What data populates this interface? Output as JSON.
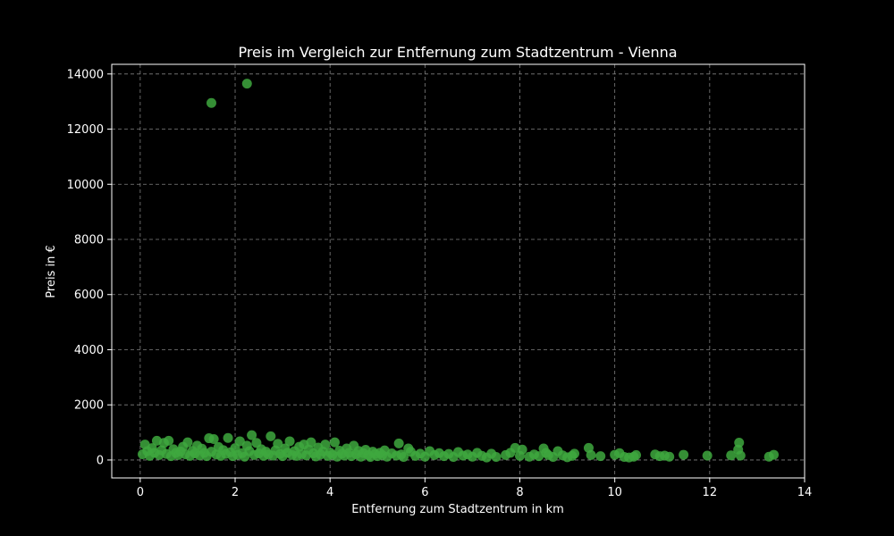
{
  "chart_data": {
    "type": "scatter",
    "title": "Preis im Vergleich zur Entfernung zum Stadtzentrum - Vienna",
    "xlabel": "Entfernung zum Stadtzentrum in km",
    "ylabel": "Preis in €",
    "xlim": [
      -0.6,
      14
    ],
    "ylim": [
      -650,
      14350
    ],
    "xticks": [
      0,
      2,
      4,
      6,
      8,
      10,
      12,
      14
    ],
    "yticks": [
      0,
      2000,
      4000,
      6000,
      8000,
      10000,
      12000,
      14000
    ],
    "grid": true,
    "colors": {
      "background": "#000000",
      "axes": "#ffffff",
      "grid": "#808080",
      "marker": "#3ea83e"
    },
    "points": [
      [
        1.5,
        12950
      ],
      [
        2.25,
        13650
      ],
      [
        0.05,
        210
      ],
      [
        0.1,
        560
      ],
      [
        0.15,
        320
      ],
      [
        0.2,
        150
      ],
      [
        0.25,
        430
      ],
      [
        0.3,
        260
      ],
      [
        0.35,
        700
      ],
      [
        0.4,
        180
      ],
      [
        0.45,
        350
      ],
      [
        0.5,
        620
      ],
      [
        0.55,
        220
      ],
      [
        0.6,
        700
      ],
      [
        0.65,
        140
      ],
      [
        0.7,
        390
      ],
      [
        0.75,
        260
      ],
      [
        0.8,
        180
      ],
      [
        0.85,
        310
      ],
      [
        0.9,
        480
      ],
      [
        0.95,
        210
      ],
      [
        1.0,
        640
      ],
      [
        1.05,
        150
      ],
      [
        1.1,
        330
      ],
      [
        1.15,
        240
      ],
      [
        1.2,
        520
      ],
      [
        1.25,
        170
      ],
      [
        1.3,
        410
      ],
      [
        1.35,
        260
      ],
      [
        1.4,
        140
      ],
      [
        1.45,
        790
      ],
      [
        1.5,
        300
      ],
      [
        1.55,
        760
      ],
      [
        1.6,
        200
      ],
      [
        1.65,
        470
      ],
      [
        1.7,
        150
      ],
      [
        1.75,
        360
      ],
      [
        1.8,
        220
      ],
      [
        1.85,
        800
      ],
      [
        1.9,
        280
      ],
      [
        1.95,
        140
      ],
      [
        2.0,
        430
      ],
      [
        2.05,
        190
      ],
      [
        2.1,
        680
      ],
      [
        2.15,
        250
      ],
      [
        2.2,
        120
      ],
      [
        2.25,
        520
      ],
      [
        2.3,
        320
      ],
      [
        2.35,
        900
      ],
      [
        2.4,
        180
      ],
      [
        2.45,
        620
      ],
      [
        2.5,
        240
      ],
      [
        2.55,
        390
      ],
      [
        2.6,
        150
      ],
      [
        2.65,
        300
      ],
      [
        2.7,
        200
      ],
      [
        2.75,
        860
      ],
      [
        2.8,
        160
      ],
      [
        2.85,
        350
      ],
      [
        2.9,
        590
      ],
      [
        2.95,
        220
      ],
      [
        3.0,
        140
      ],
      [
        3.05,
        420
      ],
      [
        3.1,
        260
      ],
      [
        3.15,
        680
      ],
      [
        3.2,
        180
      ],
      [
        3.25,
        320
      ],
      [
        3.3,
        150
      ],
      [
        3.35,
        480
      ],
      [
        3.4,
        210
      ],
      [
        3.45,
        560
      ],
      [
        3.5,
        170
      ],
      [
        3.55,
        380
      ],
      [
        3.6,
        640
      ],
      [
        3.65,
        240
      ],
      [
        3.7,
        130
      ],
      [
        3.75,
        450
      ],
      [
        3.8,
        200
      ],
      [
        3.85,
        310
      ],
      [
        3.9,
        560
      ],
      [
        3.95,
        150
      ],
      [
        4.0,
        270
      ],
      [
        4.05,
        190
      ],
      [
        4.1,
        640
      ],
      [
        4.15,
        120
      ],
      [
        4.2,
        340
      ],
      [
        4.25,
        230
      ],
      [
        4.3,
        160
      ],
      [
        4.35,
        420
      ],
      [
        4.4,
        260
      ],
      [
        4.45,
        140
      ],
      [
        4.5,
        520
      ],
      [
        4.55,
        210
      ],
      [
        4.6,
        330
      ],
      [
        4.65,
        120
      ],
      [
        4.7,
        250
      ],
      [
        4.75,
        370
      ],
      [
        4.8,
        180
      ],
      [
        4.85,
        110
      ],
      [
        4.9,
        300
      ],
      [
        4.95,
        220
      ],
      [
        5.0,
        140
      ],
      [
        5.05,
        260
      ],
      [
        5.1,
        180
      ],
      [
        5.15,
        350
      ],
      [
        5.2,
        120
      ],
      [
        5.3,
        240
      ],
      [
        5.4,
        160
      ],
      [
        5.45,
        600
      ],
      [
        5.5,
        200
      ],
      [
        5.55,
        110
      ],
      [
        5.65,
        420
      ],
      [
        5.7,
        300
      ],
      [
        5.8,
        150
      ],
      [
        5.9,
        230
      ],
      [
        6.0,
        120
      ],
      [
        6.1,
        320
      ],
      [
        6.2,
        180
      ],
      [
        6.3,
        250
      ],
      [
        6.4,
        140
      ],
      [
        6.5,
        220
      ],
      [
        6.6,
        110
      ],
      [
        6.7,
        290
      ],
      [
        6.8,
        160
      ],
      [
        6.9,
        200
      ],
      [
        7.0,
        120
      ],
      [
        7.1,
        260
      ],
      [
        7.2,
        150
      ],
      [
        7.3,
        90
      ],
      [
        7.4,
        230
      ],
      [
        7.5,
        110
      ],
      [
        7.7,
        180
      ],
      [
        7.8,
        260
      ],
      [
        7.9,
        440
      ],
      [
        8.0,
        150
      ],
      [
        8.05,
        380
      ],
      [
        8.2,
        120
      ],
      [
        8.3,
        200
      ],
      [
        8.4,
        140
      ],
      [
        8.5,
        420
      ],
      [
        8.55,
        260
      ],
      [
        8.6,
        180
      ],
      [
        8.7,
        110
      ],
      [
        8.8,
        320
      ],
      [
        8.9,
        170
      ],
      [
        9.0,
        100
      ],
      [
        9.1,
        150
      ],
      [
        9.15,
        230
      ],
      [
        9.45,
        440
      ],
      [
        9.5,
        180
      ],
      [
        9.7,
        140
      ],
      [
        10.0,
        190
      ],
      [
        10.1,
        250
      ],
      [
        10.2,
        110
      ],
      [
        10.3,
        90
      ],
      [
        10.4,
        120
      ],
      [
        10.45,
        180
      ],
      [
        10.85,
        200
      ],
      [
        10.95,
        140
      ],
      [
        11.05,
        160
      ],
      [
        11.15,
        120
      ],
      [
        11.45,
        190
      ],
      [
        11.95,
        160
      ],
      [
        12.45,
        170
      ],
      [
        12.6,
        380
      ],
      [
        12.62,
        630
      ],
      [
        12.65,
        160
      ],
      [
        13.25,
        120
      ],
      [
        13.35,
        190
      ]
    ]
  }
}
